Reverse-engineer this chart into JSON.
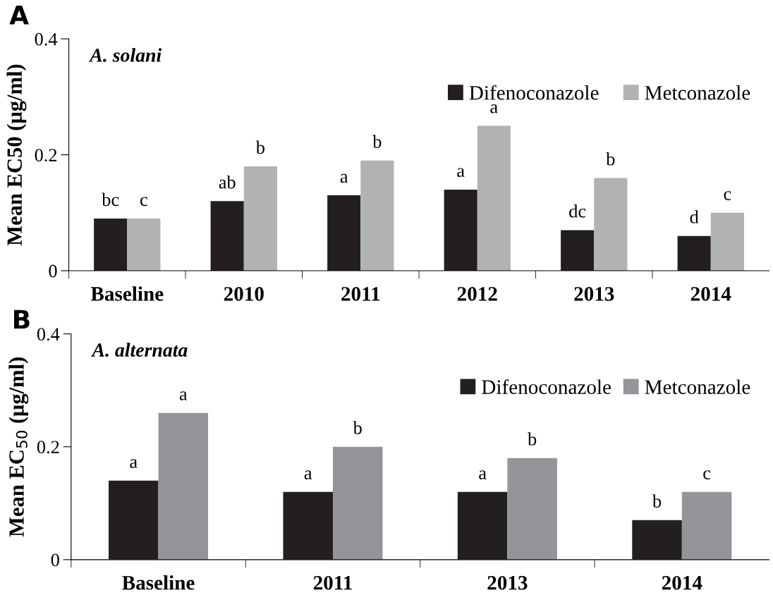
{
  "chart_data": [
    {
      "type": "bar",
      "title": "A. solani",
      "ylabel": "Mean EC50 (μg/ml)",
      "annotations": [
        "A"
      ],
      "categories": [
        "Baseline",
        "2010",
        "2011",
        "2012",
        "2013",
        "2014"
      ],
      "series": [
        {
          "name": "Difenoconazole",
          "color": "#231f20",
          "values": [
            0.09,
            0.12,
            0.13,
            0.14,
            0.07,
            0.06
          ],
          "value_labels": [
            "bc",
            "ab",
            "a",
            "a",
            "dc",
            "d"
          ]
        },
        {
          "name": "Metconazole",
          "color": "#b1b2b4",
          "values": [
            0.09,
            0.18,
            0.19,
            0.25,
            0.16,
            0.1
          ],
          "value_labels": [
            "c",
            "b",
            "b",
            "a",
            "b",
            "c"
          ]
        }
      ],
      "ylim": [
        0,
        0.4
      ],
      "yticks": [
        0,
        0.2,
        0.4
      ],
      "grid": false,
      "legend": "top right"
    },
    {
      "type": "bar",
      "title": "A. alternata",
      "ylabel": "Mean EC$_{50}$ (μg/ml)",
      "annotations": [
        "B"
      ],
      "categories": [
        "Baseline",
        "2011",
        "2013",
        "2014"
      ],
      "series": [
        {
          "name": "Difenoconazole",
          "color": "#231f20",
          "values": [
            0.14,
            0.12,
            0.12,
            0.07
          ],
          "value_labels": [
            "a",
            "a",
            "a",
            "b"
          ]
        },
        {
          "name": "Metconazole",
          "color": "#939598",
          "values": [
            0.26,
            0.2,
            0.18,
            0.12
          ],
          "value_labels": [
            "a",
            "b",
            "b",
            "c"
          ]
        }
      ],
      "ylim": [
        0,
        0.4
      ],
      "yticks": [
        0,
        0.2,
        0.4
      ],
      "grid": false,
      "legend": "top right"
    }
  ]
}
